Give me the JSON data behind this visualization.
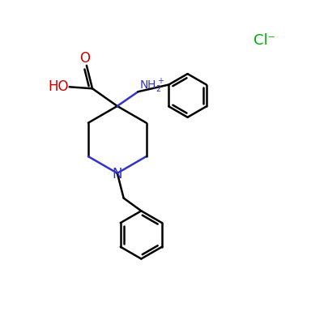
{
  "bg_color": "#ffffff",
  "bond_color": "#000000",
  "n_color": "#3333cc",
  "o_color": "#cc0000",
  "cl_color": "#00aa00",
  "lw": 1.8,
  "fig_size": [
    4.0,
    4.0
  ],
  "dpi": 100,
  "xlim": [
    0,
    10
  ],
  "ylim": [
    0,
    10
  ]
}
